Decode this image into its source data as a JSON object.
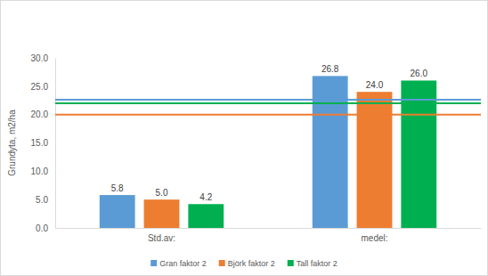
{
  "chart_data": {
    "type": "bar",
    "y_label": "Grundyta, m2/ha",
    "categories": [
      "Std.av:",
      "medel:"
    ],
    "series": [
      {
        "name": "Gran faktor 2",
        "color": "#5b9bd5",
        "values": [
          5.8,
          26.8
        ],
        "value_labels": [
          "5.8",
          "26.8"
        ],
        "reference": 22.6
      },
      {
        "name": "Björk faktor 2",
        "color": "#ed7d31",
        "values": [
          5.0,
          24.0
        ],
        "value_labels": [
          "5.0",
          "24.0"
        ],
        "reference": 20.0
      },
      {
        "name": "Tall faktor 2",
        "color": "#00b050",
        "values": [
          4.2,
          26.0
        ],
        "value_labels": [
          "4.2",
          "26.0"
        ],
        "reference": 22.0
      }
    ],
    "ylim": [
      0,
      30
    ],
    "yticks": [
      {
        "value": 0,
        "label": "0.0"
      },
      {
        "value": 5,
        "label": "5.0"
      },
      {
        "value": 10,
        "label": "10.0"
      },
      {
        "value": 15,
        "label": "15.0"
      },
      {
        "value": 20,
        "label": "20.0"
      },
      {
        "value": 25,
        "label": "25.0"
      },
      {
        "value": 30,
        "label": "30.0"
      }
    ],
    "grid": false,
    "legend": "bottom",
    "data_labels": true
  }
}
